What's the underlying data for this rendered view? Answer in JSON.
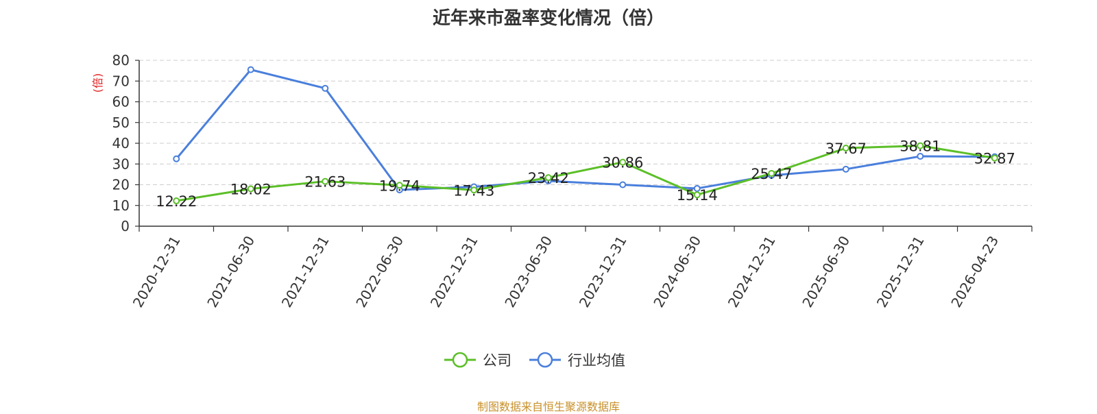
{
  "chart_data": {
    "type": "line",
    "title": "近年来市盈率变化情况（倍）",
    "ylabel": "(倍)",
    "xlabel": "",
    "categories": [
      "2020-12-31",
      "2021-06-30",
      "2021-12-31",
      "2022-06-30",
      "2022-12-31",
      "2023-06-30",
      "2023-12-31",
      "2024-06-30",
      "2024-12-31",
      "2025-06-30",
      "2025-12-31",
      "2026-04-23"
    ],
    "ylim": [
      0,
      80
    ],
    "yticks": [
      0,
      10,
      20,
      30,
      40,
      50,
      60,
      70,
      80
    ],
    "grid": true,
    "legend_position": "bottom-center",
    "series": [
      {
        "name": "公司",
        "color": "#5cbf28",
        "values": [
          12.22,
          18.02,
          21.63,
          19.74,
          17.43,
          23.42,
          30.86,
          15.14,
          25.47,
          37.67,
          38.81,
          32.87
        ],
        "labels": [
          "12.22",
          "18.02",
          "21.63",
          "19.74",
          "17.43",
          "23.42",
          "30.86",
          "15.14",
          "25.47",
          "37.67",
          "38.81",
          "32.87"
        ]
      },
      {
        "name": "行业均值",
        "color": "#4a7fdc",
        "values": [
          32.5,
          75.5,
          66.5,
          17.5,
          19.0,
          21.8,
          20.0,
          18.2,
          24.5,
          27.5,
          33.7,
          33.5
        ]
      }
    ]
  },
  "source_note": "制图数据来自恒生聚源数据库"
}
